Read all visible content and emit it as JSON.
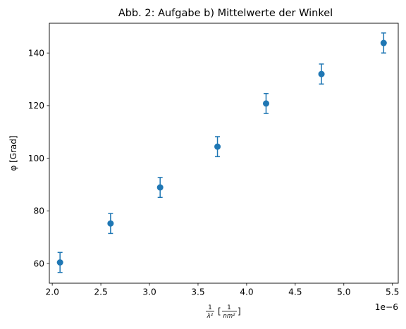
{
  "chart_data": {
    "type": "scatter",
    "title": "Abb. 2: Aufgabe b) Mittelwerte der Winkel",
    "ylabel": "φ [Grad]",
    "xlabel_parts": {
      "lhs_num": "1",
      "lhs_den": "λ²",
      "rhs_num": "1",
      "rhs_den": "nm²"
    },
    "x_offset_text": "1e−6",
    "x_scale": 1e-06,
    "xlim": [
      1.97,
      5.56
    ],
    "ylim": [
      52.5,
      151.3
    ],
    "x_ticks": [
      2.0,
      2.5,
      3.0,
      3.5,
      4.0,
      4.5,
      5.0,
      5.5
    ],
    "x_tick_labels": [
      "2.0",
      "2.5",
      "3.0",
      "3.5",
      "4.0",
      "4.5",
      "5.0",
      "5.5"
    ],
    "y_ticks": [
      60,
      80,
      100,
      120,
      140
    ],
    "y_tick_labels": [
      "60",
      "80",
      "100",
      "120",
      "140"
    ],
    "grid": false,
    "color": "#1f77b4",
    "points": [
      {
        "x": 2.08,
        "y": 60.4,
        "err": 3.8
      },
      {
        "x": 2.6,
        "y": 75.2,
        "err": 3.8
      },
      {
        "x": 3.11,
        "y": 88.9,
        "err": 3.8
      },
      {
        "x": 3.7,
        "y": 104.4,
        "err": 3.8
      },
      {
        "x": 4.2,
        "y": 120.8,
        "err": 3.8
      },
      {
        "x": 4.77,
        "y": 132.0,
        "err": 3.8
      },
      {
        "x": 5.41,
        "y": 143.8,
        "err": 3.8
      }
    ]
  }
}
